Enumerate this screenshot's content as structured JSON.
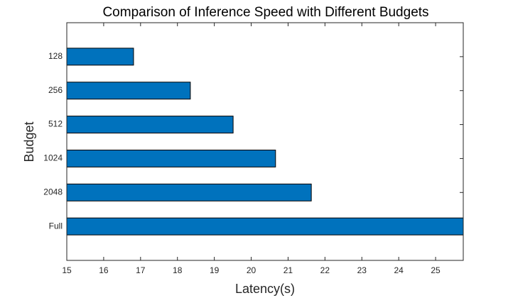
{
  "chart_data": {
    "type": "barh",
    "title": "Comparison of Inference Speed with Different Budgets",
    "x_label": "Latency(s)",
    "y_label": "Budget",
    "categories": [
      "128",
      "256",
      "512",
      "1024",
      "2048",
      "Full"
    ],
    "values": [
      16.81,
      18.35,
      19.51,
      20.66,
      21.63,
      25.75
    ],
    "color": "#0072BD",
    "xlim": [
      15,
      25.75
    ],
    "xticks": [
      15,
      16,
      17,
      18,
      19,
      20,
      21,
      22,
      23,
      24,
      25
    ],
    "grid": false
  }
}
